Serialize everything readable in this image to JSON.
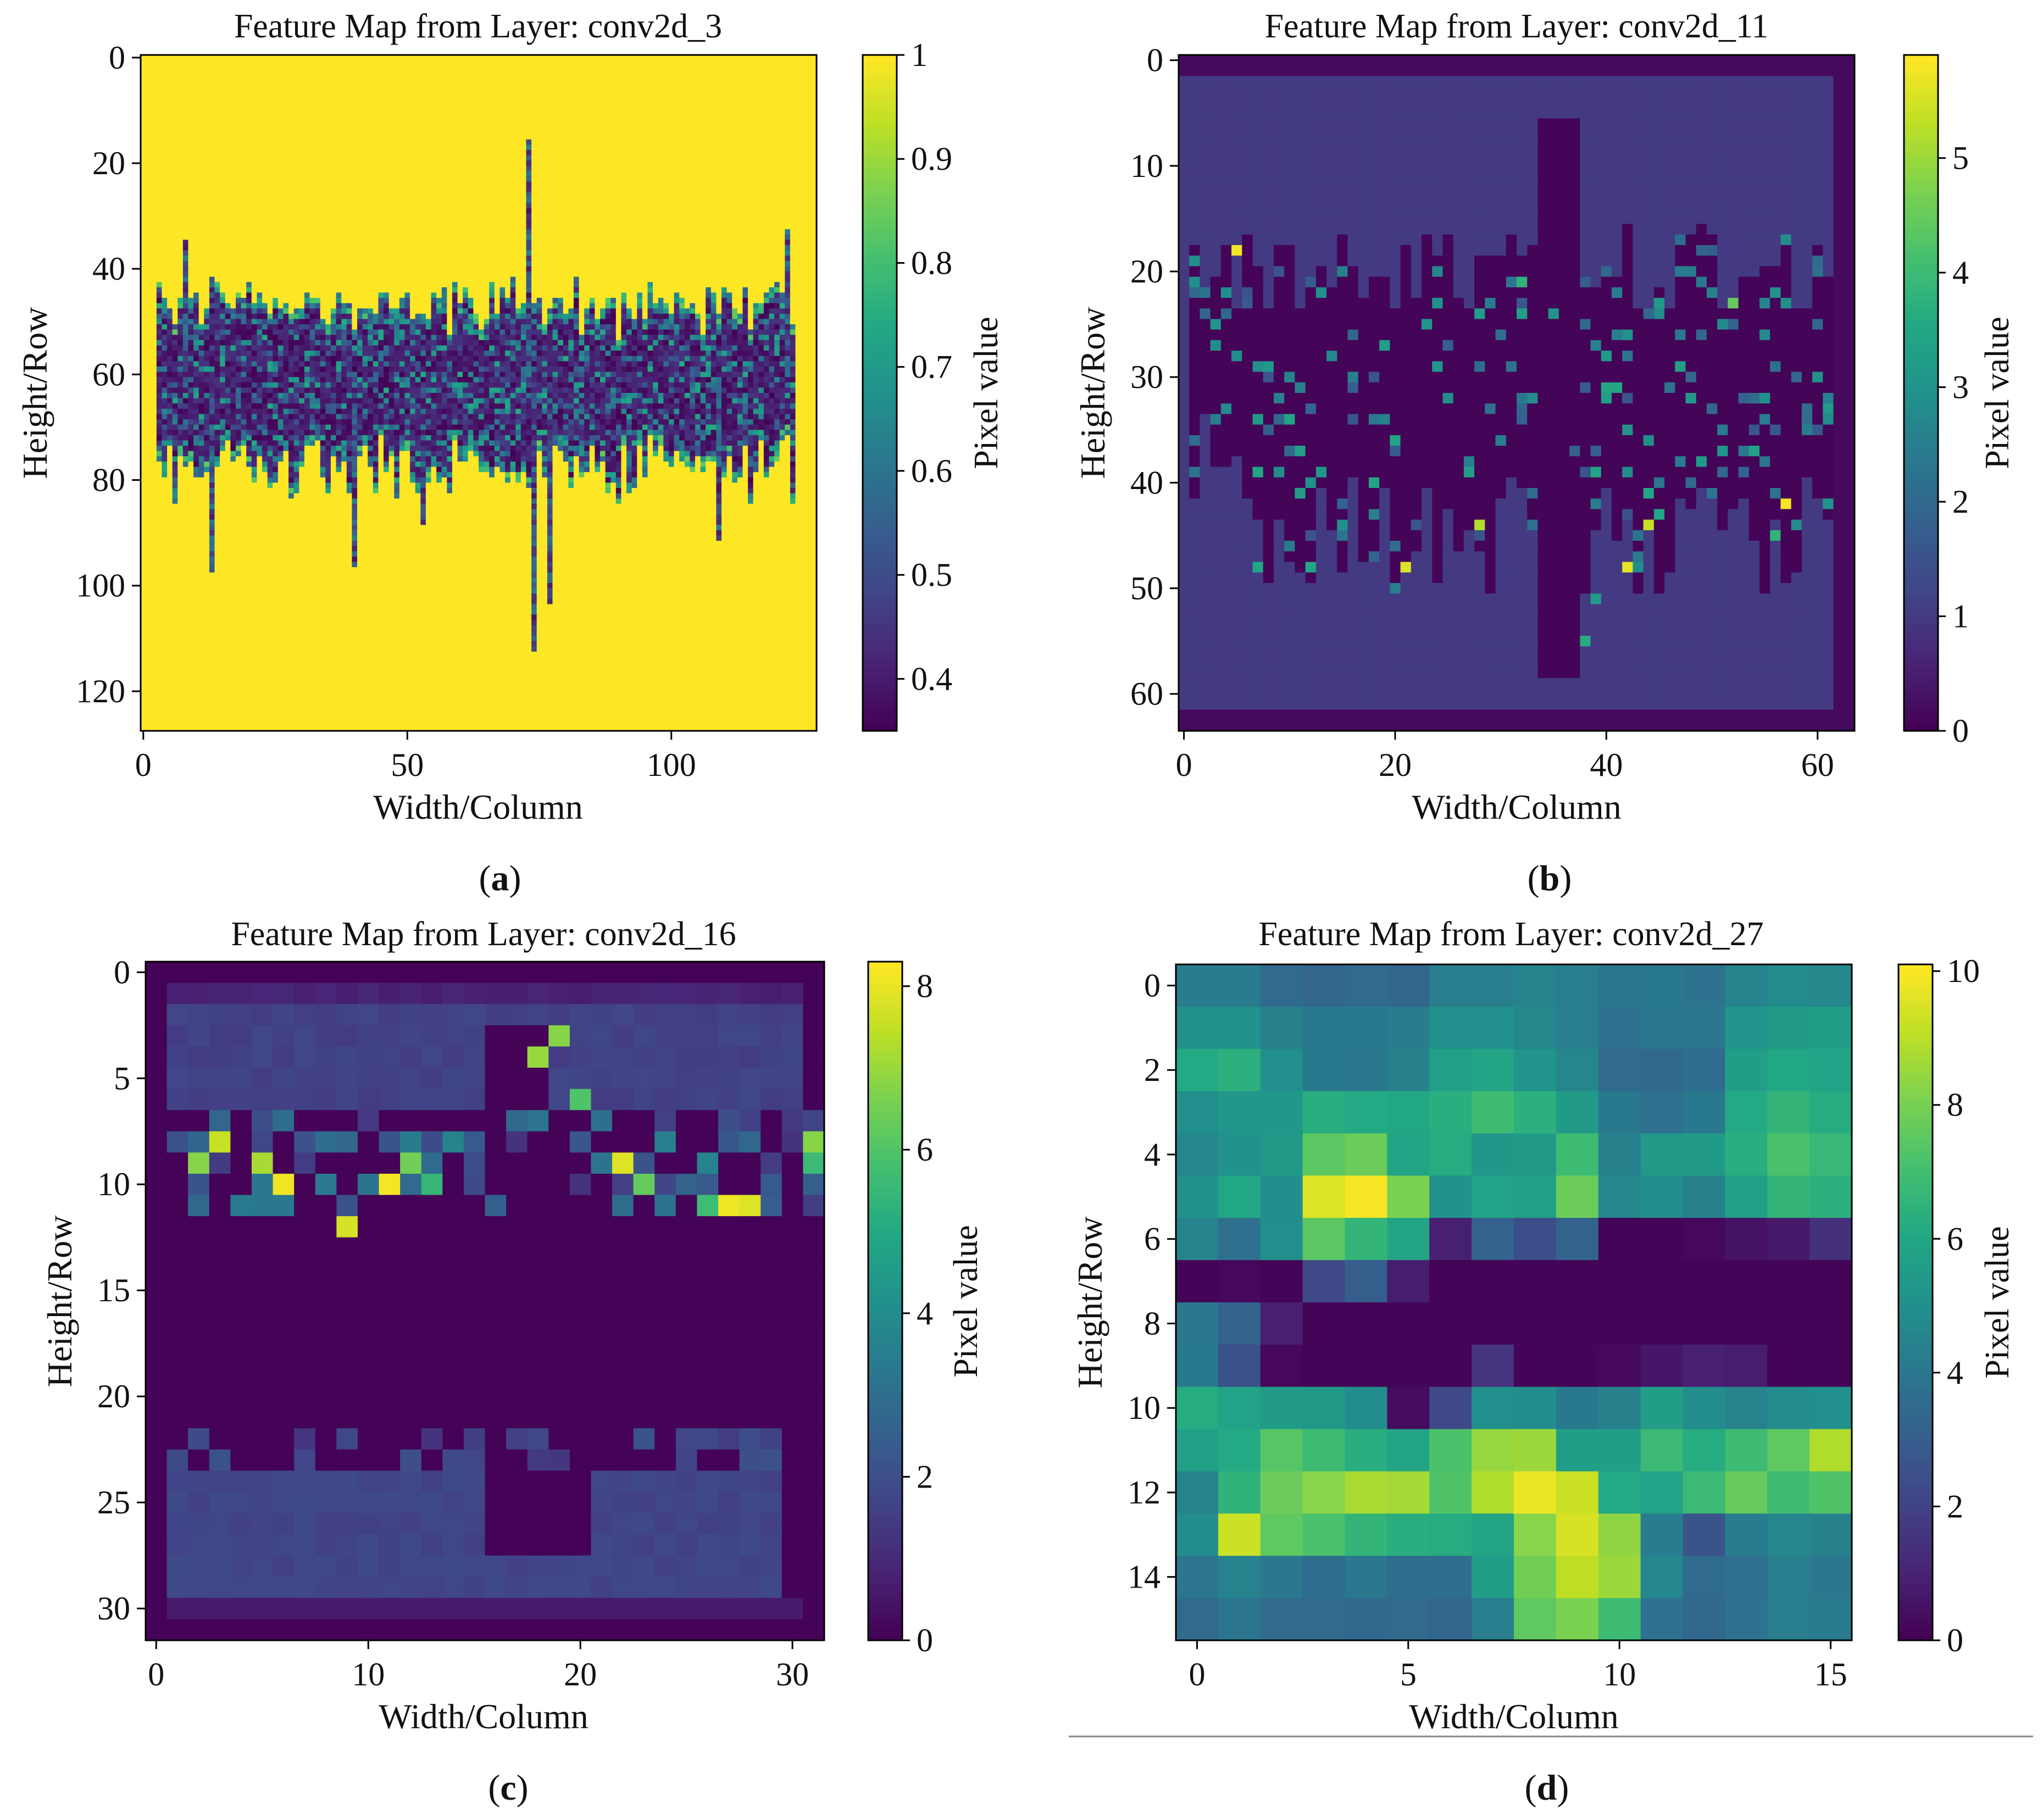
{
  "figure": {
    "panels": [
      {
        "id": "a",
        "caption_letter": "a"
      },
      {
        "id": "b",
        "caption_letter": "b"
      },
      {
        "id": "c",
        "caption_letter": "c"
      },
      {
        "id": "d",
        "caption_letter": "d"
      }
    ]
  },
  "chart_data": [
    {
      "type": "heatmap",
      "panel": "a",
      "title": "Feature Map from Layer: conv2d_3",
      "xlabel": "Width/Column",
      "ylabel": "Height/Row",
      "colorbar_label": "Pixel value",
      "colormap": "viridis",
      "grid": {
        "cols": 128,
        "rows": 128
      },
      "xlim": [
        -0.5,
        127.5
      ],
      "ylim": [
        127.5,
        -0.5
      ],
      "xticks": [
        0,
        50,
        100
      ],
      "yticks": [
        0,
        20,
        40,
        60,
        80,
        100,
        120
      ],
      "clim": [
        0.35,
        1.0
      ],
      "cbar_ticks": [
        0.4,
        0.5,
        0.6,
        0.7,
        0.8,
        0.9,
        1.0
      ],
      "pattern": {
        "background": 1.0,
        "band_center_row": 62,
        "band_half_height": 12,
        "band_cols": [
          3,
          123
        ],
        "band_min": 0.35,
        "band_max": 0.75,
        "spikes": [
          [
            8,
            35
          ],
          [
            13,
            97
          ],
          [
            40,
            96
          ],
          [
            53,
            88
          ],
          [
            73,
            16
          ],
          [
            74,
            112
          ],
          [
            77,
            103
          ],
          [
            109,
            91
          ],
          [
            122,
            33
          ]
        ]
      }
    },
    {
      "type": "heatmap",
      "panel": "b",
      "title": "Feature Map from Layer: conv2d_11",
      "xlabel": "Width/Column",
      "ylabel": "Height/Row",
      "colorbar_label": "Pixel value",
      "colormap": "viridis",
      "grid": {
        "cols": 64,
        "rows": 64
      },
      "xlim": [
        -0.5,
        63.5
      ],
      "ylim": [
        63.5,
        -0.5
      ],
      "xticks": [
        0,
        20,
        40,
        60
      ],
      "yticks": [
        0,
        10,
        20,
        30,
        40,
        50,
        60
      ],
      "clim": [
        0,
        5.9
      ],
      "cbar_ticks": [
        0,
        1,
        2,
        3,
        4,
        5
      ],
      "pattern": {
        "background": 1.0,
        "border": 0.15,
        "dark_region_rows": [
          17,
          50
        ],
        "dark_value": 0.05,
        "spine_cols": [
          34,
          37
        ],
        "spine_rows": [
          6,
          58
        ],
        "hotspots": [
          [
            5,
            18,
            5.8
          ],
          [
            7,
            48,
            3.5
          ],
          [
            12,
            40,
            3.0
          ],
          [
            21,
            48,
            5.6
          ],
          [
            28,
            44,
            5.2
          ],
          [
            32,
            21,
            3.8
          ],
          [
            38,
            55,
            3.6
          ],
          [
            39,
            51,
            3.2
          ],
          [
            42,
            48,
            5.7
          ],
          [
            44,
            44,
            5.4
          ],
          [
            52,
            23,
            4.5
          ],
          [
            56,
            45,
            3.8
          ],
          [
            57,
            42,
            5.8
          ]
        ]
      }
    },
    {
      "type": "heatmap",
      "panel": "c",
      "title": "Feature Map from Layer: conv2d_16",
      "xlabel": "Width/Column",
      "ylabel": "Height/Row",
      "colorbar_label": "Pixel value",
      "colormap": "viridis",
      "grid": {
        "cols": 32,
        "rows": 32
      },
      "xlim": [
        -0.5,
        31.5
      ],
      "ylim": [
        31.5,
        -0.5
      ],
      "xticks": [
        0,
        10,
        20,
        30
      ],
      "yticks": [
        0,
        5,
        10,
        15,
        20,
        25,
        30
      ],
      "clim": [
        0,
        8.3
      ],
      "cbar_ticks": [
        0,
        2,
        4,
        6,
        8
      ],
      "pattern": {
        "top_band_rows": [
          1,
          6
        ],
        "top_band_value": 1.6,
        "bottom_band_rows": [
          24,
          29
        ],
        "bottom_band_value": 1.7,
        "hotspots": [
          [
            2,
            9,
            6.8
          ],
          [
            3,
            8,
            7.6
          ],
          [
            5,
            9,
            7.2
          ],
          [
            6,
            10,
            8.1
          ],
          [
            9,
            12,
            7.8
          ],
          [
            11,
            10,
            8.2
          ],
          [
            12,
            9,
            6.5
          ],
          [
            13,
            10,
            5.5
          ],
          [
            18,
            4,
            7.0
          ],
          [
            19,
            3,
            6.8
          ],
          [
            20,
            6,
            6.0
          ],
          [
            22,
            9,
            7.9
          ],
          [
            23,
            10,
            6.3
          ],
          [
            26,
            11,
            5.7
          ],
          [
            27,
            11,
            8.1
          ],
          [
            28,
            11,
            7.9
          ],
          [
            31,
            8,
            6.8
          ],
          [
            31,
            9,
            5.6
          ]
        ]
      }
    },
    {
      "type": "heatmap",
      "panel": "d",
      "title": "Feature Map from Layer: conv2d_27",
      "xlabel": "Width/Column",
      "ylabel": "Height/Row",
      "colorbar_label": "Pixel value",
      "colormap": "viridis",
      "grid": {
        "cols": 16,
        "rows": 16
      },
      "xlim": [
        -0.5,
        15.5
      ],
      "ylim": [
        15.5,
        -0.5
      ],
      "xticks": [
        0,
        5,
        10,
        15
      ],
      "yticks": [
        0,
        2,
        4,
        6,
        8,
        10,
        12,
        14
      ],
      "clim": [
        0,
        10.1
      ],
      "cbar_ticks": [
        0,
        2,
        4,
        6,
        8,
        10
      ],
      "values": [
        [
          4.2,
          4.2,
          3.5,
          3.3,
          3.5,
          3.3,
          4.3,
          4.3,
          4.5,
          4.3,
          4.0,
          4.1,
          3.8,
          4.5,
          4.8,
          4.7
        ],
        [
          5.1,
          5.1,
          4.4,
          4.1,
          4.1,
          4.2,
          5.0,
          5.0,
          4.7,
          4.3,
          3.8,
          4.0,
          4.0,
          5.2,
          5.5,
          5.6
        ],
        [
          6.1,
          6.4,
          5.0,
          4.1,
          4.0,
          4.4,
          5.7,
          5.9,
          5.2,
          4.6,
          3.5,
          3.4,
          3.6,
          5.6,
          6.0,
          5.8
        ],
        [
          5.0,
          5.3,
          5.3,
          6.3,
          6.1,
          6.0,
          6.3,
          6.9,
          6.4,
          5.5,
          4.1,
          3.7,
          4.1,
          6.1,
          6.6,
          6.2
        ],
        [
          4.6,
          5.1,
          5.4,
          7.5,
          7.8,
          5.9,
          6.2,
          5.3,
          5.5,
          6.9,
          4.4,
          5.4,
          5.5,
          6.3,
          7.2,
          6.7
        ],
        [
          5.1,
          6.0,
          4.9,
          9.6,
          10.0,
          8.1,
          5.1,
          5.8,
          5.7,
          7.8,
          4.6,
          4.9,
          4.4,
          5.7,
          6.6,
          6.4
        ],
        [
          4.5,
          3.7,
          5.0,
          7.5,
          6.6,
          5.9,
          0.9,
          3.1,
          2.4,
          3.2,
          0.1,
          0.1,
          0.2,
          0.5,
          0.7,
          1.4
        ],
        [
          0.1,
          0.2,
          0.1,
          2.2,
          3.0,
          0.8,
          0.1,
          0.1,
          0.1,
          0.1,
          0.1,
          0.1,
          0.1,
          0.1,
          0.1,
          0.1
        ],
        [
          4.0,
          3.2,
          0.9,
          0.1,
          0.1,
          0.1,
          0.1,
          0.1,
          0.1,
          0.1,
          0.1,
          0.1,
          0.1,
          0.1,
          0.1,
          0.1
        ],
        [
          4.1,
          2.5,
          0.2,
          0.1,
          0.1,
          0.1,
          0.1,
          1.5,
          0.1,
          0.1,
          0.2,
          0.6,
          0.9,
          0.8,
          0.1,
          0.1
        ],
        [
          6.2,
          5.8,
          5.5,
          5.4,
          4.9,
          0.3,
          2.2,
          5.0,
          4.9,
          4.1,
          4.4,
          5.6,
          4.9,
          4.5,
          4.8,
          5.0
        ],
        [
          5.7,
          6.1,
          7.4,
          6.9,
          6.3,
          5.9,
          7.2,
          8.5,
          8.6,
          5.6,
          5.6,
          6.8,
          6.2,
          6.9,
          7.6,
          8.9
        ],
        [
          4.5,
          6.5,
          7.8,
          8.3,
          8.8,
          8.7,
          7.3,
          8.9,
          9.8,
          9.3,
          6.1,
          5.8,
          6.8,
          7.7,
          6.9,
          7.3
        ],
        [
          4.9,
          9.3,
          7.6,
          7.2,
          6.6,
          6.3,
          6.2,
          5.9,
          8.3,
          9.5,
          8.4,
          4.2,
          2.6,
          4.2,
          4.6,
          4.4
        ],
        [
          3.9,
          4.5,
          4.0,
          3.6,
          4.0,
          3.6,
          3.6,
          5.6,
          7.9,
          9.1,
          8.6,
          4.6,
          3.5,
          3.7,
          4.3,
          4.0
        ],
        [
          3.5,
          3.9,
          3.5,
          3.5,
          3.4,
          3.5,
          3.3,
          4.3,
          7.6,
          8.1,
          6.9,
          3.8,
          3.4,
          3.8,
          4.3,
          4.2
        ]
      ]
    }
  ]
}
